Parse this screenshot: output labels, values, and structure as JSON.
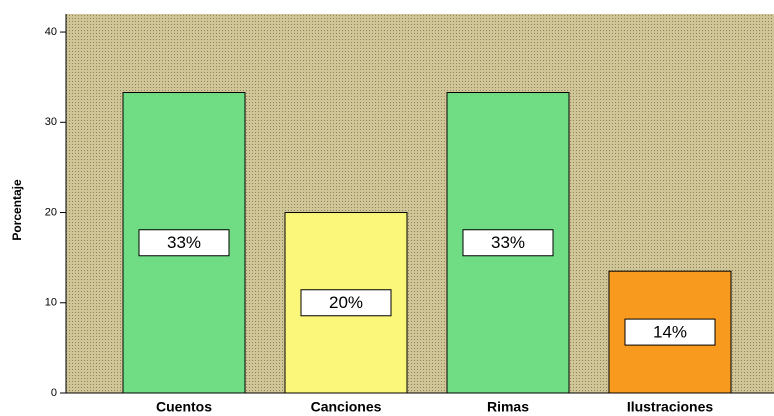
{
  "chart_data": {
    "type": "bar",
    "y_label": "Porcentaje",
    "categories": [
      "Cuentos",
      "Canciones",
      "Rimas",
      "Ilustraciones"
    ],
    "values": [
      33.3,
      20,
      33.3,
      13.5
    ],
    "value_labels": [
      "33%",
      "20%",
      "33%",
      "14%"
    ],
    "colors": [
      "#70dc84",
      "#fbf77a",
      "#70dc84",
      "#f89a1e"
    ],
    "ylim": [
      0,
      42
    ],
    "yticks": [
      0,
      10,
      20,
      30,
      40
    ]
  }
}
